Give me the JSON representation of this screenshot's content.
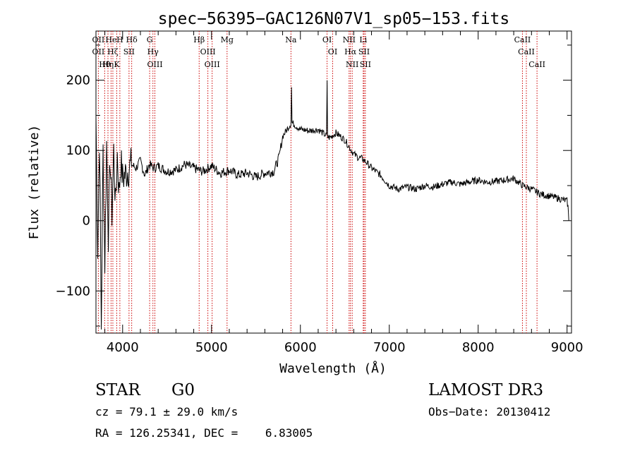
{
  "chart_data": {
    "type": "line",
    "title": "spec−56395−GAC126N07V1_sp05−153.fits",
    "xlabel": "Wavelength (Å)",
    "ylabel": "Flux (relative)",
    "xlim": [
      3700,
      9050
    ],
    "ylim": [
      -160,
      270
    ],
    "x_ticks": [
      4000,
      5000,
      6000,
      7000,
      8000,
      9000
    ],
    "y_ticks": [
      -100,
      0,
      100,
      200
    ],
    "y_tick_labels": [
      "−100",
      "0",
      "100",
      "200"
    ],
    "grid": false,
    "series": [
      {
        "name": "flux",
        "x": [
          3700,
          3720,
          3740,
          3760,
          3780,
          3800,
          3820,
          3840,
          3860,
          3880,
          3900,
          3920,
          3940,
          3960,
          3980,
          4000,
          4050,
          4100,
          4150,
          4200,
          4250,
          4300,
          4350,
          4400,
          4500,
          4600,
          4700,
          4800,
          4900,
          5000,
          5100,
          5200,
          5300,
          5400,
          5500,
          5600,
          5700,
          5760,
          5780,
          5800,
          5850,
          5900,
          5950,
          6000,
          6100,
          6200,
          6250,
          6300,
          6330,
          6400,
          6500,
          6550,
          6600,
          6650,
          6700,
          6750,
          6800,
          6900,
          7000,
          7100,
          7200,
          7300,
          7400,
          7500,
          7600,
          7700,
          7800,
          7900,
          8000,
          8100,
          8200,
          8300,
          8400,
          8500,
          8600,
          8700,
          8800,
          8900,
          8950,
          9000,
          9010,
          9020
        ],
        "y": [
          150,
          -40,
          120,
          -150,
          100,
          -60,
          110,
          -20,
          90,
          10,
          100,
          20,
          95,
          40,
          85,
          60,
          70,
          80,
          75,
          85,
          65,
          80,
          75,
          78,
          70,
          72,
          80,
          75,
          70,
          78,
          68,
          72,
          65,
          68,
          62,
          68,
          70,
          90,
          105,
          120,
          130,
          140,
          135,
          130,
          128,
          130,
          125,
          120,
          118,
          125,
          115,
          105,
          95,
          90,
          88,
          82,
          75,
          65,
          50,
          45,
          48,
          45,
          50,
          48,
          52,
          55,
          52,
          55,
          58,
          55,
          56,
          58,
          60,
          50,
          45,
          38,
          35,
          32,
          30,
          28,
          20,
          0
        ]
      }
    ],
    "spikes": [
      {
        "x": 5900,
        "y": 190
      },
      {
        "x": 6300,
        "y": 200
      }
    ],
    "line_markers": [
      {
        "x": 3727,
        "labels": [
          "OII",
          "OII"
        ]
      },
      {
        "x": 3798,
        "labels": [
          "Hθ"
        ]
      },
      {
        "x": 3835,
        "labels": [
          "Hη"
        ]
      },
      {
        "x": 3870,
        "labels": [
          "He"
        ]
      },
      {
        "x": 3890,
        "labels": [
          "Hζ"
        ]
      },
      {
        "x": 3934,
        "labels": [
          "K"
        ]
      },
      {
        "x": 3969,
        "labels": [
          "H"
        ]
      },
      {
        "x": 4072,
        "labels": [
          "SII"
        ]
      },
      {
        "x": 4102,
        "labels": [
          "Hδ"
        ]
      },
      {
        "x": 4304,
        "labels": [
          "G"
        ]
      },
      {
        "x": 4341,
        "labels": [
          "Hγ"
        ]
      },
      {
        "x": 4363,
        "labels": [
          "OIII"
        ]
      },
      {
        "x": 4861,
        "labels": [
          "Hβ"
        ]
      },
      {
        "x": 4959,
        "labels": [
          "OIII"
        ]
      },
      {
        "x": 5007,
        "labels": [
          "OIII"
        ]
      },
      {
        "x": 5175,
        "labels": [
          "Mg"
        ]
      },
      {
        "x": 5894,
        "labels": [
          "Na"
        ]
      },
      {
        "x": 6300,
        "labels": [
          "OI"
        ]
      },
      {
        "x": 6363,
        "labels": [
          "OI"
        ]
      },
      {
        "x": 6548,
        "labels": [
          "NII"
        ]
      },
      {
        "x": 6563,
        "labels": [
          "Hα"
        ]
      },
      {
        "x": 6583,
        "labels": [
          "NII"
        ]
      },
      {
        "x": 6707,
        "labels": [
          "Li"
        ]
      },
      {
        "x": 6716,
        "labels": [
          "SII"
        ]
      },
      {
        "x": 6731,
        "labels": [
          "SII"
        ]
      },
      {
        "x": 8498,
        "labels": [
          "CaII"
        ]
      },
      {
        "x": 8542,
        "labels": [
          "CaII"
        ]
      },
      {
        "x": 8662,
        "labels": [
          "CaII"
        ]
      }
    ],
    "marker_color": "#cc0000"
  },
  "info": {
    "class": "STAR",
    "subclass": "G0",
    "survey": "LAMOST DR3",
    "cz": "cz = 79.1 ± 29.0 km/s",
    "obs_date": "Obs−Date: 20130412",
    "coords": "RA = 126.25341, DEC =    6.83005"
  }
}
